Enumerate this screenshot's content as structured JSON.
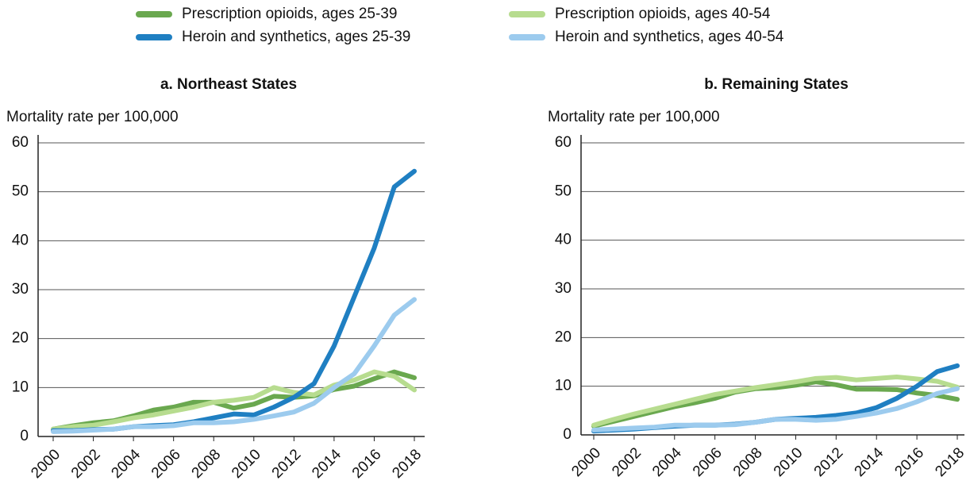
{
  "chart_data": [
    {
      "type": "line",
      "title": "a. Northeast States",
      "ylabel": "Mortality rate per 100,000",
      "x": [
        2000,
        2001,
        2002,
        2003,
        2004,
        2005,
        2006,
        2007,
        2008,
        2009,
        2010,
        2011,
        2012,
        2013,
        2014,
        2015,
        2016,
        2017,
        2018
      ],
      "xlim": [
        2000,
        2018
      ],
      "xticks": [
        2000,
        2002,
        2004,
        2006,
        2008,
        2010,
        2012,
        2014,
        2016,
        2018
      ],
      "ylim": [
        0,
        60
      ],
      "yticks": [
        0,
        10,
        20,
        30,
        40,
        50,
        60
      ],
      "grid": true,
      "series": [
        {
          "name": "Prescription opioids, ages 25-39",
          "color": "#6aa84f",
          "values": [
            1.5,
            2.2,
            2.8,
            3.2,
            4.2,
            5.4,
            6,
            7,
            7,
            5.8,
            6.6,
            8.2,
            8,
            8.3,
            9.6,
            10.3,
            11.8,
            13.2,
            12
          ]
        },
        {
          "name": "Prescription opioids, ages 40-54",
          "color": "#b7dc8f",
          "values": [
            1.5,
            2,
            2.3,
            3,
            3.8,
            4.4,
            5.2,
            6,
            7,
            7.4,
            8,
            10,
            9,
            8.5,
            10.5,
            11.5,
            13.2,
            12.3,
            9.5
          ]
        },
        {
          "name": "Heroin and synthetics, ages 25-39",
          "color": "#1f7fc2",
          "values": [
            1.2,
            1.2,
            1.4,
            1.5,
            2,
            2.2,
            2.4,
            3,
            3.8,
            4.6,
            4.4,
            6,
            8,
            10.8,
            18.5,
            28.5,
            38.5,
            51,
            54.2
          ]
        },
        {
          "name": "Heroin and synthetics, ages 40-54",
          "color": "#9ccbee",
          "values": [
            1,
            1.1,
            1.3,
            1.5,
            2,
            2,
            2.2,
            2.8,
            2.8,
            3,
            3.5,
            4.2,
            5,
            6.8,
            10,
            12.8,
            18.5,
            24.8,
            28
          ]
        }
      ]
    },
    {
      "type": "line",
      "title": "b. Remaining States",
      "ylabel": "Mortality rate per 100,000",
      "x": [
        2000,
        2001,
        2002,
        2003,
        2004,
        2005,
        2006,
        2007,
        2008,
        2009,
        2010,
        2011,
        2012,
        2013,
        2014,
        2015,
        2016,
        2017,
        2018
      ],
      "xlim": [
        2000,
        2018
      ],
      "xticks": [
        2000,
        2002,
        2004,
        2006,
        2008,
        2010,
        2012,
        2014,
        2016,
        2018
      ],
      "ylim": [
        0,
        60
      ],
      "yticks": [
        0,
        10,
        20,
        30,
        40,
        50,
        60
      ],
      "grid": true,
      "series": [
        {
          "color": "#6aa84f",
          "values": [
            1.8,
            2.8,
            3.8,
            4.8,
            5.8,
            6.6,
            7.5,
            8.8,
            9.5,
            9.7,
            10.2,
            10.9,
            10.3,
            9.4,
            9.4,
            9.3,
            8.6,
            8.1,
            7.3
          ]
        },
        {
          "color": "#b7dc8f",
          "values": [
            2,
            3.2,
            4.3,
            5.3,
            6.3,
            7.3,
            8.3,
            9,
            9.7,
            10.3,
            10.9,
            11.6,
            11.8,
            11.3,
            11.6,
            11.9,
            11.5,
            11,
            9.8
          ]
        },
        {
          "color": "#1f7fc2",
          "values": [
            0.8,
            1,
            1.2,
            1.5,
            1.8,
            2,
            2,
            2.2,
            2.6,
            3.2,
            3.4,
            3.6,
            4,
            4.5,
            5.6,
            7.5,
            10,
            13,
            14.2
          ]
        },
        {
          "color": "#9ccbee",
          "values": [
            1,
            1.2,
            1.4,
            1.6,
            2,
            2,
            2,
            2.1,
            2.6,
            3.2,
            3.2,
            3,
            3.2,
            3.8,
            4.5,
            5.4,
            6.8,
            8.5,
            9.5
          ]
        }
      ]
    }
  ]
}
